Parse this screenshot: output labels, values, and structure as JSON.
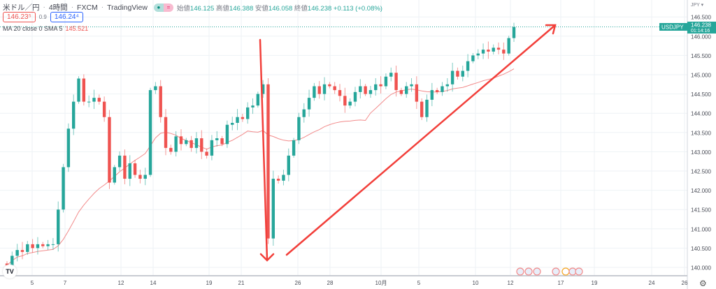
{
  "header": {
    "symbol_name": "米ドル／円",
    "interval": "4時間",
    "exchange": "FXCM",
    "source": "TradingView",
    "ohlc": {
      "open_label": "始値",
      "open": "146.125",
      "high_label": "高値",
      "high": "146.388",
      "low_label": "安値",
      "low": "146.058",
      "close_label": "終値",
      "close": "146.238",
      "change": "+0.113 (+0.08%)"
    },
    "bid": "146.23⁵",
    "spread": "0.9",
    "ask": "146.24⁴"
  },
  "indicator": {
    "label": "MA 20 close 0 SMA 5",
    "value": "145.521"
  },
  "price_axis": {
    "currency": "JPY ▾",
    "ticks": [
      "146.500",
      "146.000",
      "145.500",
      "145.000",
      "144.500",
      "144.000",
      "143.500",
      "143.000",
      "142.500",
      "142.000",
      "141.500",
      "141.000",
      "140.500",
      "140.000"
    ],
    "symbol_tag": "USDJPY",
    "last_price": "146.238",
    "countdown": "01:14:16"
  },
  "colors": {
    "up": "#26a69a",
    "down": "#ef5350",
    "ma": "#f28b8b",
    "arrow": "#f23f3a",
    "grid": "#eef2f6"
  },
  "chart_data": {
    "type": "candlestick",
    "title": "米ドル／円 4時間 FXCM",
    "ylim": [
      139.8,
      146.7
    ],
    "x_ticks": [
      "5",
      "7",
      "12",
      "14",
      "19",
      "21",
      "26",
      "28",
      "10月",
      "5",
      "10",
      "12",
      "17",
      "19",
      "24",
      "26"
    ],
    "closes": [
      140.05,
      140.3,
      140.45,
      140.4,
      140.6,
      140.5,
      140.6,
      140.55,
      140.6,
      140.6,
      141.5,
      142.6,
      143.6,
      144.3,
      144.9,
      144.3,
      144.3,
      144.4,
      144.3,
      143.9,
      142.2,
      142.6,
      142.9,
      142.3,
      142.7,
      142.4,
      142.3,
      142.4,
      144.6,
      144.7,
      143.9,
      143.1,
      143.0,
      143.4,
      143.2,
      143.3,
      143.1,
      143.35,
      143.0,
      142.9,
      143.3,
      143.35,
      143.2,
      143.7,
      143.75,
      143.9,
      143.85,
      144.15,
      144.2,
      144.5,
      144.75,
      140.75,
      142.3,
      142.25,
      142.4,
      142.9,
      143.3,
      143.9,
      144.1,
      144.4,
      144.7,
      144.5,
      144.75,
      144.7,
      144.6,
      144.45,
      144.2,
      144.3,
      144.55,
      144.7,
      144.5,
      144.6,
      144.75,
      144.7,
      144.95,
      145.05,
      144.6,
      144.5,
      144.7,
      144.75,
      144.3,
      143.9,
      144.35,
      144.6,
      144.55,
      144.7,
      144.75,
      145.1,
      144.95,
      145.1,
      145.35,
      145.5,
      145.55,
      145.65,
      145.6,
      145.7,
      145.65,
      145.55,
      145.95,
      146.238
    ],
    "first_open": 140.1,
    "ma_period": 20,
    "annotations": [
      "down-arrow",
      "up-trend-arrow"
    ]
  }
}
